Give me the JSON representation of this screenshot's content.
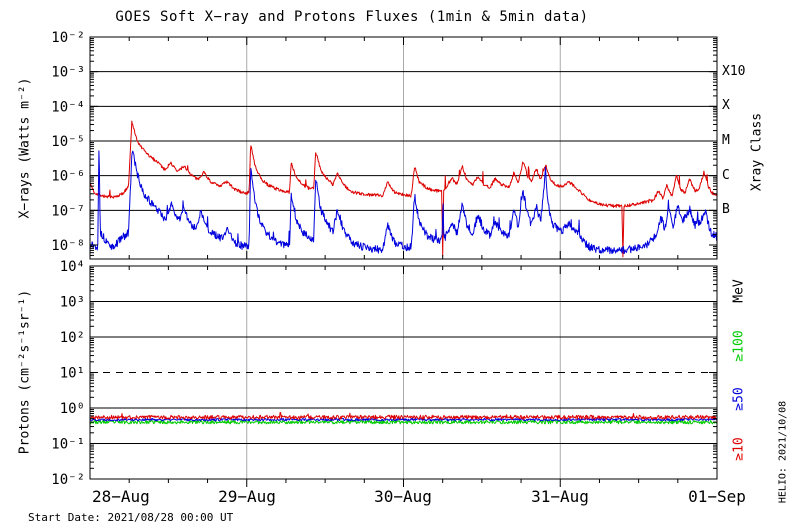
{
  "title": "GOES Soft X−ray and Protons Fluxes   (1min & 5min data)",
  "footer": {
    "start_date": "Start Date: 2021/08/28 00:00 UT",
    "credit": "HELIO: 2021/10/08"
  },
  "colors": {
    "red": "#dd0000",
    "blue": "#0000dd",
    "green": "#00cc00",
    "axis": "#000000",
    "day_grid": "#aaaaaa"
  },
  "chart_data": [
    {
      "type": "line",
      "panel": "xray",
      "ylabel": "X−rays (Watts m⁻²)",
      "right_axis_title": "Xray Class",
      "x_unit": "hours from 2021-08-28 00:00 UT",
      "xlim": [
        0,
        96
      ],
      "ylim": [
        1e-08,
        0.01
      ],
      "log_y": true,
      "xtick_labels": [
        "28−Aug",
        "29−Aug",
        "30−Aug",
        "31−Aug",
        "01−Sep"
      ],
      "ytick_labels": [
        "10⁻²",
        "10⁻³",
        "10⁻⁴",
        "10⁻⁵",
        "10⁻⁶",
        "10⁻⁷",
        "10⁻⁸"
      ],
      "ytick_logs": [
        -2,
        -3,
        -4,
        -5,
        -6,
        -7,
        -8
      ],
      "solid_grid_logs": [
        -3,
        -4,
        -5,
        -6,
        -7
      ],
      "dashed_grid_logs": [],
      "day_grid_hours": [
        24,
        48,
        72
      ],
      "right_labels": [
        {
          "text": "X10",
          "log": -3
        },
        {
          "text": "X",
          "log": -4
        },
        {
          "text": "M",
          "log": -5
        },
        {
          "text": "C",
          "log": -6
        },
        {
          "text": "B",
          "log": -7
        }
      ],
      "series": [
        {
          "name": "red",
          "color": "#dd0000",
          "anchors": [
            [
              0,
              6e-07
            ],
            [
              0.7,
              3.2e-07
            ],
            [
              2,
              2.6e-07
            ],
            [
              3.5,
              2.3e-07
            ],
            [
              5,
              3e-07
            ],
            [
              5.9,
              5e-07
            ],
            [
              6.4,
              3.5e-05
            ],
            [
              7.2,
              1e-05
            ],
            [
              8,
              6e-06
            ],
            [
              9.2,
              3.5e-06
            ],
            [
              10.5,
              2.4e-06
            ],
            [
              11.4,
              1.5e-06
            ],
            [
              12.4,
              2.3e-06
            ],
            [
              13.4,
              1.3e-06
            ],
            [
              14.4,
              1.9e-06
            ],
            [
              15.4,
              1.1e-06
            ],
            [
              16.5,
              7.5e-07
            ],
            [
              17.4,
              1.3e-06
            ],
            [
              18.5,
              6.5e-07
            ],
            [
              19.8,
              5e-07
            ],
            [
              21,
              6.5e-07
            ],
            [
              22.2,
              4e-07
            ],
            [
              23.5,
              3.2e-07
            ],
            [
              24.35,
              3.2e-07
            ],
            [
              24.6,
              8e-06
            ],
            [
              25.3,
              1.8e-06
            ],
            [
              26.2,
              8e-07
            ],
            [
              27.2,
              5.5e-07
            ],
            [
              28.5,
              4.2e-07
            ],
            [
              30,
              3.4e-07
            ],
            [
              30.55,
              3.4e-07
            ],
            [
              30.8,
              2.3e-06
            ],
            [
              31.6,
              9e-07
            ],
            [
              32.6,
              5.5e-07
            ],
            [
              33.6,
              4.2e-07
            ],
            [
              34.25,
              4.2e-07
            ],
            [
              34.55,
              5e-06
            ],
            [
              35.3,
              1.5e-06
            ],
            [
              36.2,
              8.5e-07
            ],
            [
              37.2,
              5.5e-07
            ],
            [
              37.9,
              1.2e-06
            ],
            [
              38.8,
              5.5e-07
            ],
            [
              40,
              3.4e-07
            ],
            [
              41.5,
              3e-07
            ],
            [
              43,
              2.8e-07
            ],
            [
              44.8,
              2.7e-07
            ],
            [
              45.6,
              6.5e-07
            ],
            [
              46.6,
              3.4e-07
            ],
            [
              48,
              2.8e-07
            ],
            [
              49.2,
              2.6e-07
            ],
            [
              49.7,
              1.9e-06
            ],
            [
              50.4,
              6.5e-07
            ],
            [
              51.6,
              4.4e-07
            ],
            [
              52.8,
              3.7e-07
            ],
            [
              53.85,
              3.7e-07
            ],
            [
              54,
              4.5e-09
            ],
            [
              54.15,
              3.7e-07
            ],
            [
              55.4,
              8.5e-07
            ],
            [
              56.2,
              5.5e-07
            ],
            [
              57,
              1.9e-06
            ],
            [
              57.7,
              7.5e-07
            ],
            [
              58.6,
              5.5e-07
            ],
            [
              59.4,
              9.5e-07
            ],
            [
              60.3,
              5.5e-07
            ],
            [
              61.2,
              4.4e-07
            ],
            [
              62.1,
              8.5e-07
            ],
            [
              63,
              5.5e-07
            ],
            [
              64.2,
              4.8e-07
            ],
            [
              64.9,
              1.2e-06
            ],
            [
              65.6,
              6.5e-07
            ],
            [
              66.3,
              2.6e-06
            ],
            [
              67,
              9.5e-07
            ],
            [
              67.6,
              6.5e-07
            ],
            [
              68.3,
              1.7e-06
            ],
            [
              69,
              7.5e-07
            ],
            [
              69.75,
              2.1e-06
            ],
            [
              70.4,
              8.5e-07
            ],
            [
              71.2,
              5.5e-07
            ],
            [
              72.2,
              4.8e-07
            ],
            [
              73.3,
              6.8e-07
            ],
            [
              74.2,
              5e-07
            ],
            [
              75.3,
              3.1e-07
            ],
            [
              76.6,
              1.9e-07
            ],
            [
              78,
              1.5e-07
            ],
            [
              79.8,
              1.35e-07
            ],
            [
              81.45,
              1.35e-07
            ],
            [
              81.6,
              4.5e-09
            ],
            [
              81.75,
              1.35e-07
            ],
            [
              83.2,
              1.45e-07
            ],
            [
              84.8,
              1.7e-07
            ],
            [
              86.2,
              1.9e-07
            ],
            [
              87,
              3.6e-07
            ],
            [
              87.7,
              2.3e-07
            ],
            [
              88.3,
              5.2e-07
            ],
            [
              89.1,
              2.6e-07
            ],
            [
              89.8,
              1.05e-06
            ],
            [
              90.4,
              4.2e-07
            ],
            [
              91.1,
              3.1e-07
            ],
            [
              91.8,
              8.2e-07
            ],
            [
              92.6,
              3.7e-07
            ],
            [
              93.3,
              4.2e-07
            ],
            [
              94,
              1.3e-06
            ],
            [
              94.6,
              5.2e-07
            ],
            [
              95.3,
              3.1e-07
            ],
            [
              96,
              2.7e-07
            ]
          ]
        },
        {
          "name": "blue",
          "color": "#0000dd",
          "anchors": [
            [
              0,
              1.1e-08
            ],
            [
              0.9,
              9e-09
            ],
            [
              1.2,
              9e-09
            ],
            [
              1.35,
              7e-06
            ],
            [
              1.6,
              2.2e-08
            ],
            [
              2.6,
              1.2e-08
            ],
            [
              3.6,
              8e-09
            ],
            [
              4.6,
              1.5e-08
            ],
            [
              5.9,
              2.2e-08
            ],
            [
              6.45,
              6e-06
            ],
            [
              7.2,
              1.2e-06
            ],
            [
              7.9,
              4e-07
            ],
            [
              8.7,
              2.4e-07
            ],
            [
              9.6,
              1.4e-07
            ],
            [
              10.6,
              9e-08
            ],
            [
              11.5,
              5.5e-08
            ],
            [
              12.5,
              1.4e-07
            ],
            [
              13.5,
              5e-08
            ],
            [
              14.4,
              1.1e-07
            ],
            [
              15.3,
              4e-08
            ],
            [
              16.1,
              3e-08
            ],
            [
              17,
              9.5e-08
            ],
            [
              17.9,
              3e-08
            ],
            [
              19,
              2e-08
            ],
            [
              20.4,
              1.5e-08
            ],
            [
              21.1,
              3e-08
            ],
            [
              22.1,
              1.2e-08
            ],
            [
              23.5,
              9e-09
            ],
            [
              24.35,
              1e-08
            ],
            [
              24.6,
              1.6e-06
            ],
            [
              25.4,
              1.3e-07
            ],
            [
              26.2,
              4e-08
            ],
            [
              27.2,
              2e-08
            ],
            [
              28.5,
              1.3e-08
            ],
            [
              30,
              1e-08
            ],
            [
              30.55,
              1e-08
            ],
            [
              30.8,
              2.8e-07
            ],
            [
              31.6,
              5.5e-08
            ],
            [
              32.6,
              2.4e-08
            ],
            [
              33.6,
              1.5e-08
            ],
            [
              34.25,
              1.5e-08
            ],
            [
              34.55,
              8.5e-07
            ],
            [
              35.3,
              1.1e-07
            ],
            [
              36.2,
              4.5e-08
            ],
            [
              37.2,
              2.4e-08
            ],
            [
              37.9,
              1.1e-07
            ],
            [
              38.8,
              2.8e-08
            ],
            [
              40,
              1.2e-08
            ],
            [
              41.6,
              9e-09
            ],
            [
              43.2,
              7.5e-09
            ],
            [
              44.8,
              7.5e-09
            ],
            [
              45.6,
              3.8e-08
            ],
            [
              46.6,
              1.2e-08
            ],
            [
              48,
              9e-09
            ],
            [
              49.2,
              8.5e-09
            ],
            [
              49.7,
              2.8e-07
            ],
            [
              50.4,
              4.5e-08
            ],
            [
              51.6,
              1.9e-08
            ],
            [
              52.8,
              1.4e-08
            ],
            [
              53.9,
              1.4e-08
            ],
            [
              54.05,
              2.4e-07
            ],
            [
              54.2,
              1.4e-08
            ],
            [
              55.4,
              4.5e-08
            ],
            [
              56.2,
              2.2e-08
            ],
            [
              57,
              1.4e-07
            ],
            [
              57.7,
              3.8e-08
            ],
            [
              58.6,
              2.2e-08
            ],
            [
              59.4,
              7.5e-08
            ],
            [
              60.3,
              2.8e-08
            ],
            [
              61.2,
              1.9e-08
            ],
            [
              62.1,
              4.5e-08
            ],
            [
              63,
              2.4e-08
            ],
            [
              64.2,
              1.9e-08
            ],
            [
              64.9,
              9.5e-08
            ],
            [
              65.6,
              3.3e-08
            ],
            [
              66.3,
              3.8e-07
            ],
            [
              67,
              7.5e-08
            ],
            [
              67.6,
              3.8e-08
            ],
            [
              68.3,
              1.4e-07
            ],
            [
              69,
              4.7e-08
            ],
            [
              69.75,
              1.5e-06
            ],
            [
              70.15,
              1.4e-07
            ],
            [
              70.9,
              3.8e-08
            ],
            [
              72.2,
              2.4e-08
            ],
            [
              73.3,
              4.3e-08
            ],
            [
              74.2,
              2.8e-08
            ],
            [
              75.3,
              1.4e-08
            ],
            [
              76.6,
              8.5e-09
            ],
            [
              78,
              7e-09
            ],
            [
              80,
              7e-09
            ],
            [
              83,
              7.5e-09
            ],
            [
              85.2,
              9.5e-09
            ],
            [
              86.6,
              1.9e-08
            ],
            [
              87.4,
              6.6e-08
            ],
            [
              88,
              2.8e-08
            ],
            [
              88.5,
              1.1e-07
            ],
            [
              89.3,
              3.8e-08
            ],
            [
              90,
              1.4e-07
            ],
            [
              90.7,
              4.7e-08
            ],
            [
              91.8,
              1.1e-07
            ],
            [
              92.6,
              3.8e-08
            ],
            [
              93.5,
              4.7e-08
            ],
            [
              94.2,
              1e-07
            ],
            [
              95,
              2.4e-08
            ],
            [
              96,
              1.7e-08
            ]
          ]
        }
      ]
    },
    {
      "type": "line",
      "panel": "protons",
      "ylabel": "Protons (cm⁻²s⁻¹sr⁻¹)",
      "right_axis_title": "MeV",
      "x_unit": "hours from 2021-08-28 00:00 UT",
      "xlim": [
        0,
        96
      ],
      "ylim": [
        0.01,
        10000.0
      ],
      "log_y": true,
      "ytick_labels": [
        "10⁴",
        "10³",
        "10²",
        "10¹",
        "10⁰",
        "10⁻¹",
        "10⁻²"
      ],
      "ytick_logs": [
        4,
        3,
        2,
        1,
        0,
        -1,
        -2
      ],
      "solid_grid_logs": [
        3,
        2,
        0,
        -1
      ],
      "dashed_grid_logs": [
        1
      ],
      "day_grid_hours": [
        24,
        48,
        72
      ],
      "right_labels": [
        {
          "text": "≥100",
          "color": "#00cc00"
        },
        {
          "text": "≥50",
          "color": "#0000dd"
        },
        {
          "text": "≥10",
          "color": "#dd0000"
        }
      ],
      "series": [
        {
          "name": "≥100 MeV",
          "color": "#00cc00",
          "anchors": [
            [
              0,
              0.4
            ],
            [
              96,
              0.4
            ]
          ]
        },
        {
          "name": "≥50 MeV",
          "color": "#0000dd",
          "anchors": [
            [
              0,
              0.47
            ],
            [
              96,
              0.47
            ]
          ]
        },
        {
          "name": "≥10 MeV",
          "color": "#dd0000",
          "anchors": [
            [
              0,
              0.55
            ],
            [
              96,
              0.55
            ]
          ]
        }
      ]
    }
  ]
}
